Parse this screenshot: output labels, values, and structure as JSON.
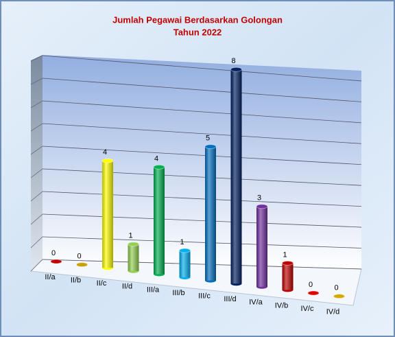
{
  "chart_data": {
    "type": "bar3d",
    "title": "Jumlah Pegawai Berdasarkan Golongan",
    "subtitle": "Tahun 2022",
    "categories": [
      "II/a",
      "II/b",
      "II/c",
      "II/d",
      "III/a",
      "III/b",
      "III/c",
      "III/d",
      "IV/a",
      "IV/b",
      "IV/c",
      "IV/d"
    ],
    "values": [
      0,
      0,
      4,
      1,
      4,
      1,
      5,
      8,
      3,
      1,
      0,
      0
    ],
    "colors": [
      "#c00000",
      "#c9a000",
      "#ffff00",
      "#92d050",
      "#00b050",
      "#00b0f0",
      "#0070c0",
      "#002060",
      "#7030a0",
      "#c00000",
      "#e00000",
      "#d4a800"
    ],
    "ylim": [
      0,
      9
    ],
    "yticks": [
      0,
      1,
      2,
      3,
      4,
      5,
      6,
      7,
      8,
      9
    ],
    "grid": true
  }
}
